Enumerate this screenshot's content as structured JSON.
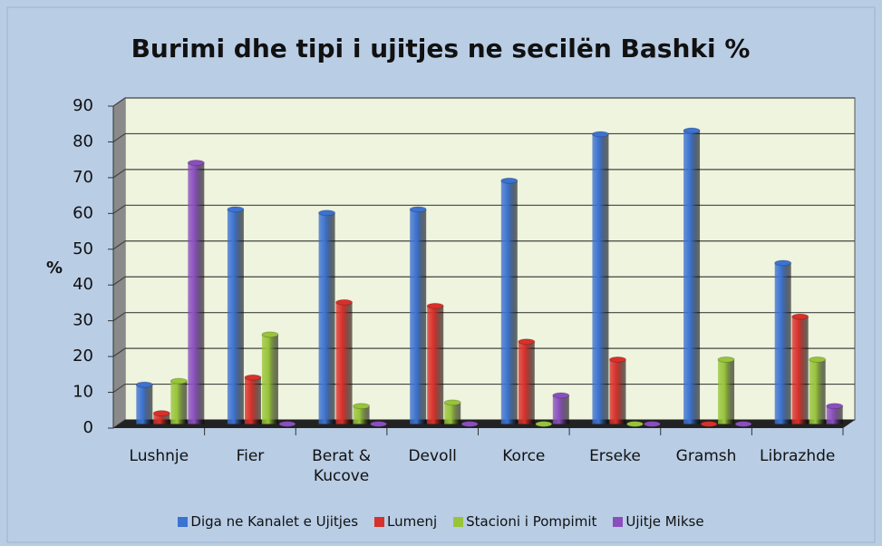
{
  "chart_data": {
    "type": "bar",
    "title": "Burimi dhe tipi i ujitjes ne secilën Bashki %",
    "y_label": "%",
    "categories": [
      "Lushnje",
      "Fier",
      "Berat & Kucove",
      "Devoll",
      "Korce",
      "Erseke",
      "Gramsh",
      "Librazhde"
    ],
    "series": [
      {
        "name": "Diga ne Kanalet e Ujitjes",
        "color": "#3c72d0",
        "values": [
          11,
          60,
          59,
          60,
          68,
          81,
          82,
          45
        ]
      },
      {
        "name": "Lumenj",
        "color": "#d8302a",
        "values": [
          3,
          13,
          34,
          33,
          23,
          18,
          0,
          30
        ]
      },
      {
        "name": "Stacioni i Pompimit",
        "color": "#98c43a",
        "values": [
          12,
          25,
          5,
          6,
          0,
          0,
          18,
          18
        ]
      },
      {
        "name": "Ujitje Mikse",
        "color": "#8a4fbe",
        "values": [
          73,
          0,
          0,
          0,
          8,
          0,
          0,
          5
        ]
      }
    ],
    "ylim": [
      0,
      90
    ],
    "yticks": [
      0,
      10,
      20,
      30,
      40,
      50,
      60,
      70,
      80,
      90
    ],
    "grid": true,
    "legend": "bottom"
  }
}
